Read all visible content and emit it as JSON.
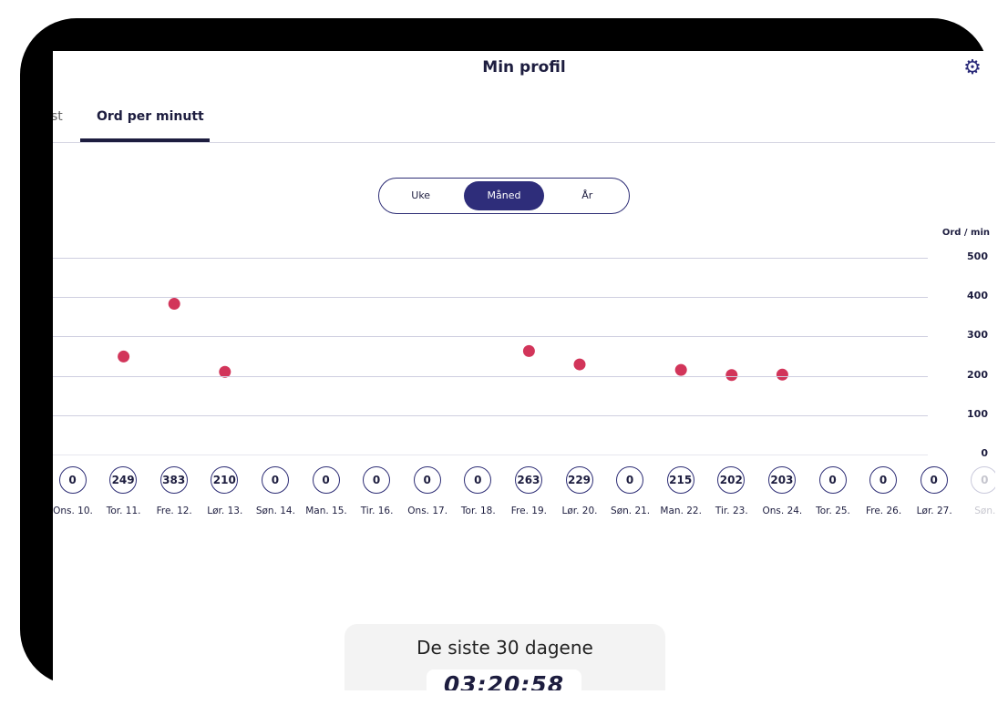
{
  "header": {
    "title": "Min profil",
    "settings_icon": "gear-icon"
  },
  "tabs": [
    {
      "label": "st",
      "active": false
    },
    {
      "label": "Ord per minutt",
      "active": true
    }
  ],
  "segment": {
    "options": [
      "Uke",
      "Måned",
      "År"
    ],
    "selected": "Måned"
  },
  "chart_data": {
    "type": "scatter",
    "ylabel": "Ord / min",
    "ylim": [
      0,
      500
    ],
    "yticks": [
      "500",
      "400",
      "300",
      "200",
      "100",
      "0"
    ],
    "days": [
      "Ons. 10.",
      "Tor. 11.",
      "Fre. 12.",
      "Lør. 13.",
      "Søn. 14.",
      "Man. 15.",
      "Tir. 16.",
      "Ons. 17.",
      "Tor. 18.",
      "Fre. 19.",
      "Lør. 20.",
      "Søn. 21.",
      "Man. 22.",
      "Tir. 23.",
      "Ons. 24.",
      "Tor. 25.",
      "Fre. 26.",
      "Lør. 27.",
      "Søn."
    ],
    "values": [
      0,
      249,
      383,
      210,
      0,
      0,
      0,
      0,
      0,
      263,
      229,
      0,
      215,
      202,
      203,
      0,
      0,
      0,
      0
    ],
    "point_color": "#d2355a"
  },
  "summary": {
    "title": "De siste 30 dagene",
    "time": "03:20:58"
  }
}
